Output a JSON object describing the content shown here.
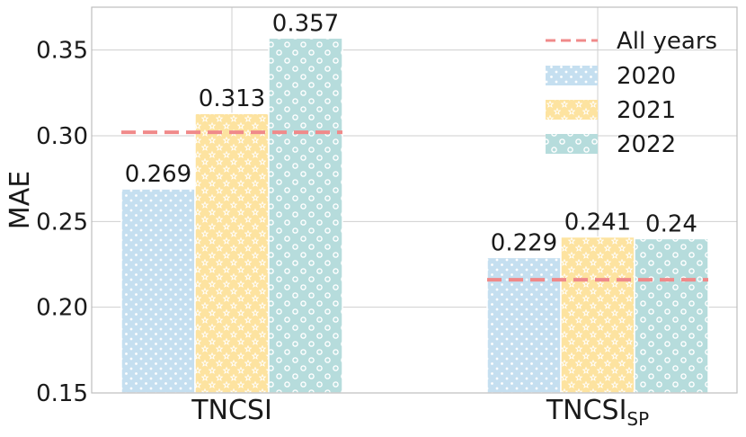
{
  "chart_data": {
    "type": "bar",
    "ylabel": "MAE",
    "ylim": [
      0.15,
      0.375
    ],
    "yticks": [
      0.15,
      0.2,
      0.25,
      0.3,
      0.35
    ],
    "ytick_labels": [
      "0.15",
      "0.20",
      "0.25",
      "0.30",
      "0.35"
    ],
    "grid": true,
    "legend_position": "top-right",
    "categories": [
      {
        "main": "TNCSI",
        "sub": ""
      },
      {
        "main": "TNCSI",
        "sub": "SP"
      }
    ],
    "series": [
      {
        "name": "2020",
        "values": [
          0.269,
          0.229
        ],
        "labels": [
          "0.269",
          "0.229"
        ],
        "color": "#c5dff0",
        "pattern": "dots"
      },
      {
        "name": "2021",
        "values": [
          0.313,
          0.241
        ],
        "labels": [
          "0.313",
          "0.241"
        ],
        "color": "#fde3a0",
        "pattern": "stars"
      },
      {
        "name": "2022",
        "values": [
          0.357,
          0.24
        ],
        "labels": [
          "0.357",
          "0.24"
        ],
        "color": "#b6dcdc",
        "pattern": "circles"
      }
    ],
    "reference_line": {
      "name": "All years",
      "values": [
        0.302,
        0.216
      ],
      "color": "#f08a8a",
      "style": "dashed"
    }
  }
}
